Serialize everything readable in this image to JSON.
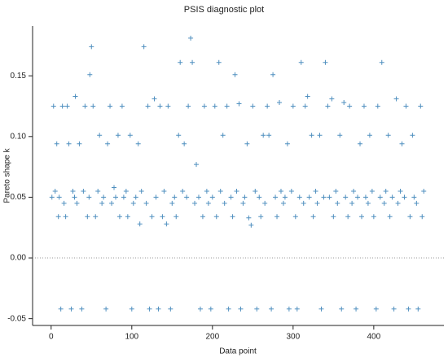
{
  "chart_data": {
    "type": "scatter",
    "title": "PSIS diagnostic plot",
    "x_label": "Data point",
    "y_label": "Pareto shape k",
    "xlim": [
      -23,
      487
    ],
    "ylim": [
      -0.0556,
      0.191
    ],
    "xticks": [
      0,
      100,
      200,
      300,
      400
    ],
    "yticks": [
      -0.05,
      {
        "value": 0,
        "label": "0.00"
      },
      0.05,
      {
        "value": 0.1,
        "label": "0.10"
      },
      0.15
    ],
    "reference_line": 0,
    "series": [
      {
        "color": "#4f8fbf",
        "x": [
          1,
          3,
          5,
          7,
          9,
          10,
          12,
          14,
          16,
          18,
          20,
          22,
          25,
          27,
          29,
          30,
          32,
          35,
          38,
          40,
          42,
          45,
          47,
          48,
          50,
          52,
          55,
          58,
          60,
          63,
          65,
          68,
          70,
          73,
          75,
          78,
          80,
          83,
          85,
          88,
          90,
          93,
          95,
          98,
          100,
          102,
          105,
          108,
          110,
          112,
          115,
          118,
          120,
          122,
          125,
          128,
          130,
          133,
          135,
          138,
          140,
          143,
          145,
          148,
          150,
          153,
          155,
          158,
          160,
          163,
          165,
          168,
          170,
          173,
          175,
          178,
          180,
          183,
          185,
          188,
          190,
          193,
          195,
          198,
          200,
          203,
          205,
          208,
          210,
          213,
          215,
          218,
          220,
          223,
          225,
          228,
          230,
          233,
          235,
          238,
          240,
          243,
          245,
          248,
          250,
          253,
          255,
          258,
          260,
          263,
          265,
          268,
          270,
          273,
          275,
          278,
          280,
          283,
          285,
          288,
          290,
          293,
          295,
          298,
          300,
          303,
          305,
          308,
          310,
          313,
          315,
          318,
          320,
          323,
          325,
          328,
          330,
          333,
          335,
          338,
          340,
          343,
          345,
          348,
          350,
          353,
          355,
          358,
          360,
          363,
          365,
          368,
          370,
          373,
          375,
          378,
          380,
          383,
          385,
          388,
          390,
          393,
          395,
          398,
          400,
          403,
          405,
          408,
          410,
          413,
          415,
          418,
          420,
          423,
          425,
          428,
          430,
          433,
          435,
          438,
          440,
          443,
          445,
          448,
          450,
          453,
          455,
          458,
          460,
          462
        ],
        "values": [
          0.05,
          0.125,
          0.055,
          0.094,
          0.034,
          0.05,
          -0.042,
          0.125,
          0.045,
          0.034,
          0.125,
          0.094,
          -0.042,
          0.055,
          0.05,
          0.133,
          0.045,
          0.094,
          -0.042,
          0.055,
          0.125,
          0.034,
          0.05,
          0.151,
          0.174,
          0.125,
          0.034,
          0.055,
          0.101,
          0.045,
          0.05,
          -0.042,
          0.094,
          0.125,
          0.045,
          0.058,
          0.05,
          0.101,
          0.034,
          0.125,
          0.05,
          0.055,
          0.034,
          0.101,
          -0.042,
          0.045,
          0.05,
          0.094,
          0.028,
          0.055,
          0.174,
          0.045,
          0.125,
          -0.042,
          0.034,
          0.131,
          0.05,
          -0.042,
          0.125,
          0.034,
          0.055,
          0.028,
          0.125,
          -0.042,
          0.045,
          0.05,
          0.034,
          0.101,
          0.161,
          0.055,
          0.094,
          0.05,
          0.125,
          0.181,
          0.161,
          0.045,
          0.077,
          0.05,
          -0.042,
          0.034,
          0.125,
          0.055,
          0.045,
          -0.042,
          0.05,
          0.125,
          0.034,
          0.161,
          0.055,
          0.101,
          0.045,
          0.125,
          -0.042,
          0.05,
          0.034,
          0.151,
          0.055,
          0.127,
          -0.042,
          0.045,
          0.05,
          0.094,
          0.033,
          0.027,
          0.125,
          0.055,
          -0.042,
          0.05,
          0.034,
          0.101,
          0.045,
          0.125,
          0.101,
          -0.042,
          0.151,
          0.05,
          0.034,
          0.128,
          0.055,
          0.045,
          0.05,
          0.094,
          -0.042,
          0.055,
          0.125,
          0.034,
          -0.042,
          0.05,
          0.161,
          0.045,
          0.125,
          0.133,
          0.05,
          0.101,
          0.034,
          0.055,
          0.045,
          0.101,
          -0.042,
          0.05,
          0.161,
          0.125,
          0.05,
          0.131,
          0.034,
          0.055,
          0.045,
          0.101,
          -0.042,
          0.128,
          0.05,
          0.034,
          0.125,
          0.045,
          0.055,
          -0.042,
          0.05,
          0.094,
          0.034,
          0.125,
          0.05,
          0.045,
          0.101,
          0.055,
          0.034,
          -0.042,
          0.125,
          0.05,
          0.161,
          0.045,
          0.055,
          0.101,
          0.034,
          0.05,
          -0.042,
          0.131,
          0.045,
          0.055,
          0.094,
          0.05,
          0.125,
          -0.042,
          0.034,
          0.101,
          0.05,
          0.045,
          -0.042,
          0.125,
          0.034,
          0.055
        ]
      }
    ]
  }
}
